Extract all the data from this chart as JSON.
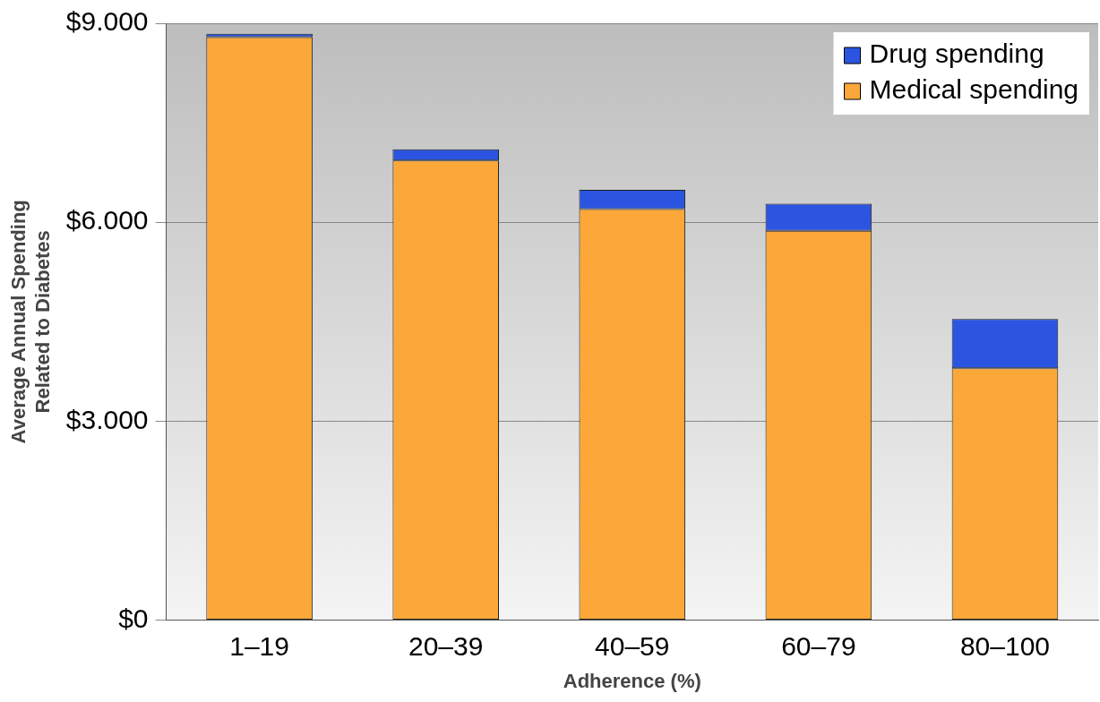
{
  "chart_data": {
    "type": "bar",
    "stacked": true,
    "xlabel": "Adherence (%)",
    "ylabel": "Average Annual Spending\nRelated to Diabetes",
    "categories": [
      "1–19",
      "20–39",
      "40–59",
      "60–79",
      "80–100"
    ],
    "series": [
      {
        "name": "Medical spending",
        "color": "#fca73a",
        "values": [
          8790,
          6930,
          6200,
          5870,
          3800
        ]
      },
      {
        "name": "Drug spending",
        "color": "#2b55e0",
        "values": [
          50,
          170,
          290,
          410,
          740
        ]
      }
    ],
    "ylim": [
      0,
      9000
    ],
    "yticks": [
      {
        "value": 0,
        "label": "$0"
      },
      {
        "value": 3000,
        "label": "$3.000"
      },
      {
        "value": 6000,
        "label": "$6.000"
      },
      {
        "value": 9000,
        "label": "$9.000"
      }
    ],
    "grid": "y",
    "legend": "top right"
  }
}
